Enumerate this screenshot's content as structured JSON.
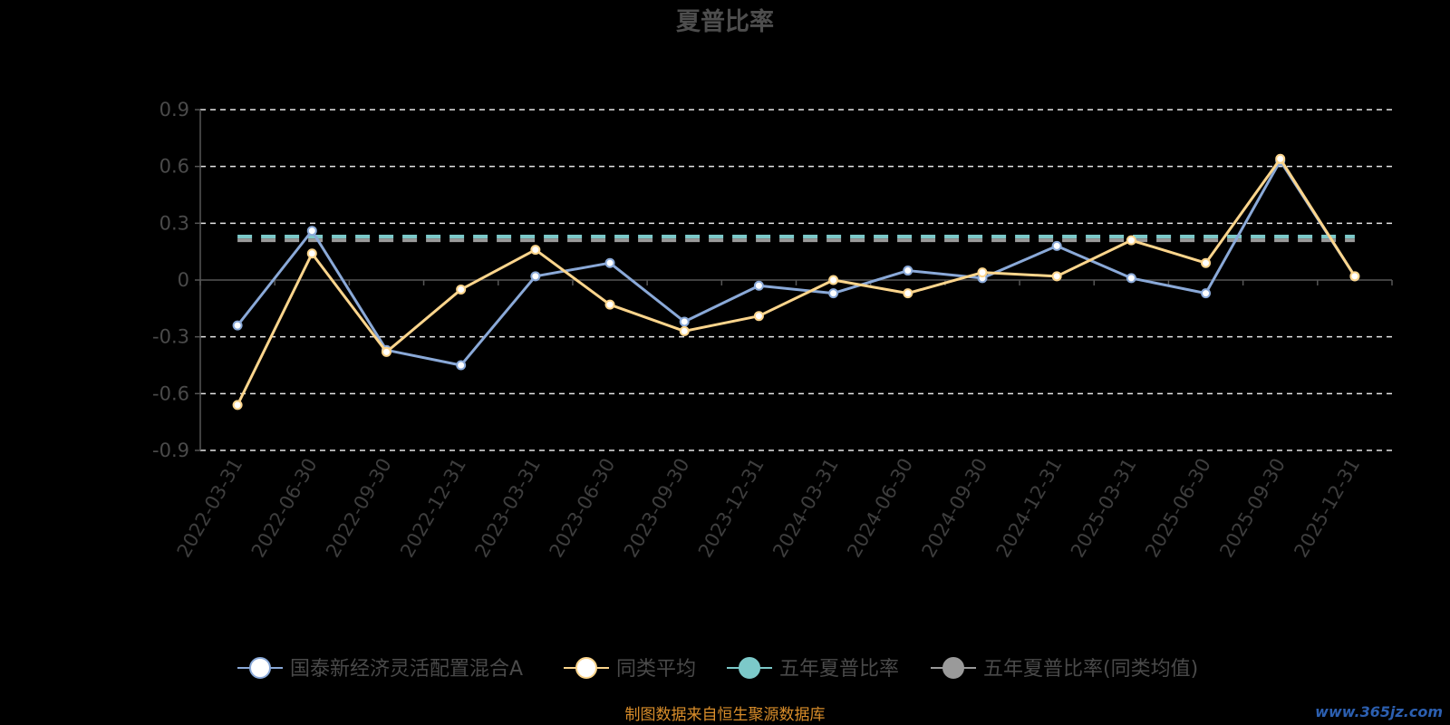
{
  "colors": {
    "fund": "#8aa9d8",
    "category": "#fcd58c",
    "five_year_fund": "#7cc9c9",
    "five_year_category": "#9a9a9a",
    "source": "#d98d2a",
    "watermark": "#2c5fb0"
  },
  "chart_data": {
    "type": "line",
    "title": "夏普比率",
    "xlabel": "",
    "ylabel": "",
    "ylim": [
      -0.9,
      0.9
    ],
    "yticks": [
      "0.9",
      "0.6",
      "0.3",
      "0",
      "-0.3",
      "-0.6",
      "-0.9"
    ],
    "yticks_values": [
      0.9,
      0.6,
      0.3,
      0,
      -0.3,
      -0.6,
      -0.9
    ],
    "grid": "horizontal dashed",
    "legend_position": "bottom",
    "categories": [
      "2022-03-31",
      "2022-06-30",
      "2022-09-30",
      "2022-12-31",
      "2023-03-31",
      "2023-06-30",
      "2023-09-30",
      "2023-12-31",
      "2024-03-31",
      "2024-06-30",
      "2024-09-30",
      "2024-12-31",
      "2025-03-31",
      "2025-06-30",
      "2025-09-30",
      "2025-12-31"
    ],
    "series": [
      {
        "name": "国泰新经济灵活配置混合A",
        "color": "#8aa9d8",
        "values": [
          -0.24,
          0.26,
          -0.37,
          -0.45,
          0.02,
          0.09,
          -0.22,
          -0.03,
          -0.07,
          0.05,
          0.01,
          0.18,
          0.01,
          -0.07,
          0.63,
          0.02
        ]
      },
      {
        "name": "同类平均",
        "color": "#fcd58c",
        "values": [
          -0.66,
          0.14,
          -0.38,
          -0.05,
          0.16,
          -0.13,
          -0.27,
          -0.19,
          0.0,
          -0.07,
          0.04,
          0.02,
          0.21,
          0.09,
          0.64,
          0.02
        ]
      },
      {
        "name": "五年夏普比率",
        "color": "#7cc9c9",
        "constant": 0.23
      },
      {
        "name": "五年夏普比率(同类均值)",
        "color": "#9a9a9a",
        "constant": 0.21
      }
    ]
  },
  "legend": [
    "国泰新经济灵活配置混合A",
    "同类平均",
    "五年夏普比率",
    "五年夏普比率(同类均值)"
  ],
  "source_text": "制图数据来自恒生聚源数据库",
  "watermark": "www.365jz.com"
}
